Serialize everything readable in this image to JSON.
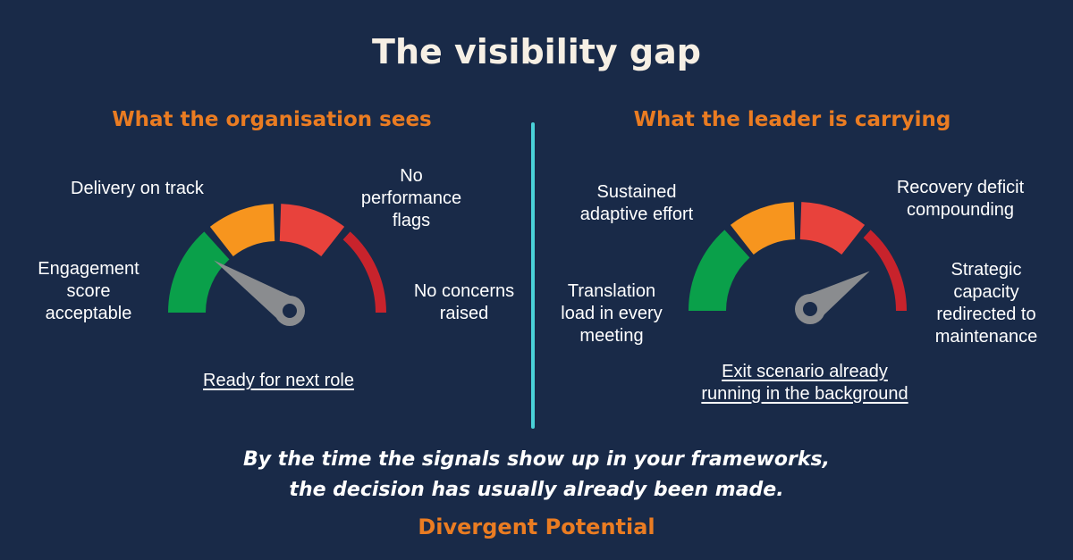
{
  "title": "The visibility gap",
  "left_panel": {
    "heading": "What the organisation sees",
    "labels": {
      "engagement": [
        "Engagement",
        "score",
        "acceptable"
      ],
      "delivery": "Delivery on track",
      "performance": [
        "No",
        "performance",
        "flags"
      ],
      "concerns": [
        "No concerns",
        "raised"
      ],
      "ready": "Ready for next role"
    },
    "gauge_level": 0.22
  },
  "right_panel": {
    "heading": "What the leader is carrying",
    "labels": {
      "translation": [
        "Translation",
        "load in every",
        "meeting"
      ],
      "sustained": [
        "Sustained",
        "adaptive effort"
      ],
      "recovery": [
        "Recovery deficit",
        "compounding"
      ],
      "strategic": [
        "Strategic",
        "capacity",
        "redirected to",
        "maintenance"
      ],
      "exit": [
        "Exit scenario already",
        "running in the background"
      ]
    },
    "gauge_level": 0.84
  },
  "quote": [
    "By the time the signals show up in your frameworks,",
    "the decision has usually already been made."
  ],
  "brand": "Divergent Potential",
  "colors": {
    "background": "#192a48",
    "heading": "#ea7c22",
    "divider": "#4ad1d8",
    "needle": "#8a8c8f",
    "segments": [
      "#0aa04a",
      "#f7951e",
      "#e8423c",
      "#c8232c"
    ]
  }
}
